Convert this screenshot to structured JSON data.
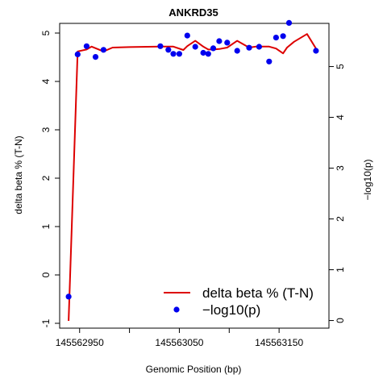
{
  "chart_data": {
    "type": "line",
    "title": "ANKRD35",
    "xlabel": "Genomic Position (bp)",
    "ylabel_left": "delta beta % (T-N)",
    "ylabel_right": "−log10(p)",
    "xlim": [
      145562930,
      145563200
    ],
    "ylim_left": [
      -1.1,
      5.2
    ],
    "ylim_right": [
      -0.15,
      5.85
    ],
    "x_ticks": [
      145562950,
      145563000,
      145563050,
      145563100,
      145563150
    ],
    "x_tick_labels": [
      "145562950",
      "",
      "145563050",
      "",
      "145563150"
    ],
    "y_left_ticks": [
      -1,
      0,
      1,
      2,
      3,
      4,
      5
    ],
    "y_right_ticks": [
      0,
      1,
      2,
      3,
      4,
      5
    ],
    "legend": {
      "position": "bottom-right",
      "entries": [
        "delta beta % (T-N)",
        "−log10(p)"
      ]
    },
    "series": [
      {
        "name": "delta beta % (T-N)",
        "color": "#dd0000",
        "axis": "left",
        "x": [
          145562939,
          145562948,
          145562957,
          145562962,
          145562974,
          145562983,
          145563000,
          145563031,
          145563039,
          145563044,
          145563054,
          145563058,
          145563066,
          145563074,
          145563079,
          145563084,
          145563090,
          145563098,
          145563108,
          145563120,
          145563127,
          145563133,
          145563140,
          145563147,
          145563154,
          145563158,
          145563165,
          145563178,
          145563187
        ],
        "y": [
          -0.95,
          4.62,
          4.66,
          4.72,
          4.62,
          4.7,
          4.71,
          4.72,
          4.72,
          4.72,
          4.65,
          4.73,
          4.84,
          4.72,
          4.66,
          4.66,
          4.67,
          4.7,
          4.84,
          4.7,
          4.72,
          4.72,
          4.72,
          4.68,
          4.58,
          4.7,
          4.82,
          4.98,
          4.68
        ]
      },
      {
        "name": "−log10(p)",
        "color": "#0000ee",
        "axis": "right",
        "x": [
          145562939,
          145562948,
          145562957,
          145562966,
          145562974,
          145563031,
          145563039,
          145563044,
          145563050,
          145563058,
          145563066,
          145563074,
          145563079,
          145563084,
          145563090,
          145563098,
          145563108,
          145563120,
          145563130,
          145563140,
          145563147,
          145563154,
          145563160,
          145563187
        ],
        "y": [
          0.47,
          5.24,
          5.4,
          5.19,
          5.33,
          5.4,
          5.33,
          5.25,
          5.25,
          5.61,
          5.39,
          5.27,
          5.25,
          5.36,
          5.5,
          5.47,
          5.31,
          5.37,
          5.39,
          5.1,
          5.57,
          5.6,
          5.86,
          5.31
        ]
      }
    ]
  }
}
